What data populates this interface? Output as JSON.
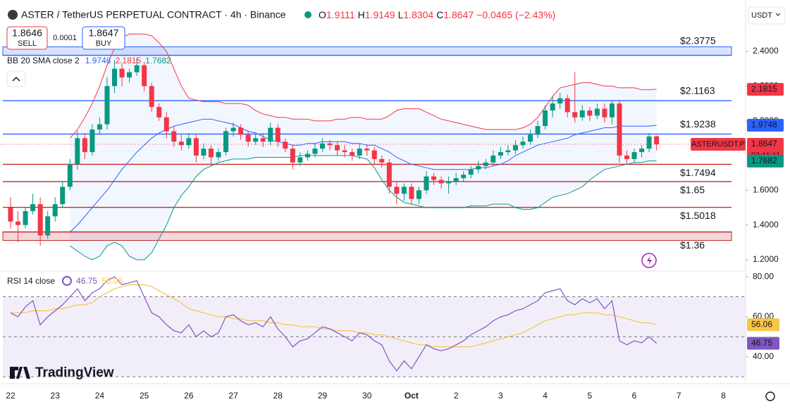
{
  "header": {
    "title": "ASTER / TetherUS PERPETUAL CONTRACT · 4h · Binance",
    "ohlc": [
      {
        "key": "O",
        "value": "1.9111"
      },
      {
        "key": "H",
        "value": "1.9149"
      },
      {
        "key": "L",
        "value": "1.8304"
      },
      {
        "key": "C",
        "value": "1.8647"
      }
    ],
    "change": "−0.0465 (−2.43%)",
    "currency": "USDT"
  },
  "trade": {
    "sell_price": "1.8646",
    "sell": "SELL",
    "spread": "0.0001",
    "buy_price": "1.8647",
    "buy": "BUY"
  },
  "indicators": {
    "bb": {
      "label": "BB 20 SMA close 2",
      "values": [
        "1.9748",
        "2.1815",
        "1.7682"
      ]
    },
    "rsi": {
      "label": "RSI 14 close",
      "values": [
        "46.75",
        "56.06"
      ]
    }
  },
  "brand": "TradingView",
  "chart_data": [
    {
      "type": "candlestick",
      "categories": [
        "22",
        null,
        null,
        null,
        null,
        null,
        "23",
        null,
        null,
        null,
        null,
        null,
        "24",
        null,
        null,
        null,
        null,
        null,
        "25",
        null,
        null,
        null,
        null,
        null,
        "26",
        null,
        null,
        null,
        null,
        null,
        "27",
        null,
        null,
        null,
        null,
        null,
        "28",
        null,
        null,
        null,
        null,
        null,
        "29",
        null,
        null,
        null,
        null,
        null,
        "30",
        null,
        null,
        null,
        null,
        null,
        "Oct",
        null,
        null,
        null,
        null,
        null,
        "2",
        null,
        null,
        null,
        null,
        null,
        "3",
        null,
        null,
        null,
        null,
        null,
        "4",
        null,
        null,
        null,
        null,
        null,
        "5",
        null,
        null,
        null,
        null,
        null,
        "6",
        null,
        null,
        null,
        null,
        null,
        "7",
        null,
        null,
        null,
        null,
        null,
        "8"
      ],
      "open": [
        1.5,
        1.42,
        1.4,
        1.48,
        1.52,
        1.34,
        1.45,
        1.52,
        1.62,
        1.75,
        1.9,
        1.82,
        1.95,
        1.98,
        2.2,
        2.3,
        2.25,
        2.28,
        2.32,
        2.2,
        2.08,
        2.02,
        1.94,
        1.88,
        1.86,
        1.9,
        1.8,
        1.84,
        1.79,
        1.82,
        1.94,
        1.96,
        1.92,
        1.88,
        1.9,
        1.88,
        1.96,
        1.88,
        1.84,
        1.76,
        1.79,
        1.81,
        1.84,
        1.87,
        1.86,
        1.83,
        1.82,
        1.8,
        1.84,
        1.83,
        1.78,
        1.76,
        1.62,
        1.58,
        1.62,
        1.55,
        1.6,
        1.68,
        1.66,
        1.64,
        1.65,
        1.67,
        1.69,
        1.72,
        1.74,
        1.76,
        1.8,
        1.82,
        1.83,
        1.86,
        1.88,
        1.92,
        1.97,
        2.06,
        2.1,
        2.13,
        2.05,
        2.02,
        2.06,
        2.03,
        2.07,
        2.02,
        2.1,
        1.8,
        1.78,
        1.82,
        1.84,
        1.9111,
        null,
        null,
        null,
        null,
        null,
        null,
        null,
        null,
        null
      ],
      "high": [
        1.56,
        1.48,
        1.5,
        1.58,
        1.56,
        1.48,
        1.56,
        1.65,
        1.78,
        1.94,
        1.93,
        1.98,
        2.02,
        2.25,
        2.35,
        2.33,
        2.3,
        2.36,
        2.34,
        2.22,
        2.1,
        2.05,
        1.97,
        1.92,
        1.93,
        1.92,
        1.87,
        1.86,
        1.84,
        1.96,
        1.99,
        1.98,
        1.94,
        1.93,
        1.93,
        1.99,
        1.98,
        1.9,
        1.86,
        1.82,
        1.83,
        1.87,
        1.9,
        1.89,
        1.88,
        1.86,
        1.84,
        1.87,
        1.86,
        1.85,
        1.8,
        1.78,
        1.65,
        1.64,
        1.64,
        1.62,
        1.71,
        1.7,
        1.68,
        1.68,
        1.7,
        1.71,
        1.74,
        1.77,
        1.78,
        1.83,
        1.85,
        1.86,
        1.89,
        1.91,
        1.95,
        2.0,
        2.09,
        2.14,
        2.16,
        2.15,
        2.28,
        2.09,
        2.08,
        2.1,
        2.1,
        2.12,
        2.12,
        1.83,
        1.84,
        1.86,
        1.93,
        1.9149,
        null,
        null,
        null,
        null,
        null,
        null,
        null,
        null,
        null
      ],
      "low": [
        1.38,
        1.3,
        1.38,
        1.46,
        1.28,
        1.32,
        1.42,
        1.5,
        1.6,
        1.72,
        1.78,
        1.8,
        1.92,
        1.95,
        2.16,
        2.2,
        2.22,
        2.26,
        2.17,
        2.05,
        2.0,
        1.9,
        1.85,
        1.83,
        1.84,
        1.76,
        1.78,
        1.74,
        1.77,
        1.8,
        1.91,
        1.89,
        1.85,
        1.86,
        1.85,
        1.86,
        1.85,
        1.82,
        1.72,
        1.74,
        1.77,
        1.79,
        1.82,
        1.83,
        1.8,
        1.79,
        1.77,
        1.78,
        1.8,
        1.75,
        1.73,
        1.58,
        1.52,
        1.54,
        1.52,
        1.52,
        1.58,
        1.63,
        1.61,
        1.58,
        1.63,
        1.65,
        1.67,
        1.7,
        1.72,
        1.74,
        1.78,
        1.8,
        1.81,
        1.84,
        1.86,
        1.9,
        1.95,
        2.02,
        2.07,
        2.02,
        1.99,
        2.0,
        2.0,
        2.01,
        1.99,
        1.98,
        1.76,
        1.75,
        1.76,
        1.79,
        1.82,
        1.8304,
        null,
        null,
        null,
        null,
        null,
        null,
        null,
        null,
        null
      ],
      "close": [
        1.42,
        1.4,
        1.48,
        1.52,
        1.34,
        1.45,
        1.52,
        1.62,
        1.75,
        1.9,
        1.82,
        1.95,
        1.98,
        2.2,
        2.3,
        2.25,
        2.28,
        2.32,
        2.2,
        2.08,
        2.02,
        1.94,
        1.88,
        1.86,
        1.9,
        1.8,
        1.84,
        1.79,
        1.82,
        1.94,
        1.96,
        1.92,
        1.88,
        1.9,
        1.88,
        1.96,
        1.88,
        1.84,
        1.76,
        1.79,
        1.81,
        1.84,
        1.87,
        1.86,
        1.83,
        1.82,
        1.8,
        1.84,
        1.83,
        1.78,
        1.76,
        1.62,
        1.58,
        1.62,
        1.55,
        1.6,
        1.68,
        1.66,
        1.64,
        1.65,
        1.67,
        1.69,
        1.72,
        1.74,
        1.76,
        1.8,
        1.82,
        1.83,
        1.86,
        1.88,
        1.92,
        1.97,
        2.06,
        2.1,
        2.13,
        2.05,
        2.02,
        2.06,
        2.03,
        2.07,
        2.02,
        2.1,
        1.8,
        1.78,
        1.82,
        1.84,
        1.91,
        1.8647,
        null,
        null,
        null,
        null,
        null,
        null,
        null,
        null,
        null
      ],
      "up_color": "#089981",
      "down_color": "#f23645",
      "series": [
        {
          "color": "#2962ff",
          "values": [
            null,
            null,
            null,
            null,
            null,
            null,
            null,
            null,
            1.36,
            1.4,
            1.45,
            1.5,
            1.55,
            1.6,
            1.66,
            1.72,
            1.77,
            1.82,
            1.86,
            1.9,
            1.93,
            1.95,
            1.97,
            1.98,
            1.99,
            2.0,
            2.01,
            2.01,
            2.0,
            1.99,
            1.98,
            1.96,
            1.94,
            1.93,
            1.91,
            1.89,
            1.88,
            1.87,
            1.86,
            1.86,
            1.87,
            1.87,
            1.88,
            1.88,
            1.88,
            1.88,
            1.87,
            1.87,
            1.86,
            1.86,
            1.84,
            1.82,
            1.79,
            1.77,
            1.75,
            1.74,
            1.73,
            1.72,
            1.72,
            1.72,
            1.72,
            1.72,
            1.72,
            1.73,
            1.73,
            1.74,
            1.75,
            1.77,
            1.8,
            1.82,
            1.84,
            1.86,
            1.87,
            1.88,
            1.89,
            1.9,
            1.92,
            1.93,
            1.94,
            1.95,
            1.96,
            1.96,
            1.97,
            1.97,
            1.97,
            1.97,
            1.97,
            1.9748,
            null,
            null,
            null,
            null,
            null,
            null,
            null,
            null,
            null
          ]
        },
        {
          "color": "#f23645",
          "values": [
            null,
            null,
            null,
            null,
            null,
            null,
            null,
            null,
            1.9,
            1.95,
            2.02,
            2.1,
            2.2,
            2.32,
            2.42,
            2.48,
            2.5,
            2.5,
            2.5,
            2.49,
            2.45,
            2.4,
            2.3,
            2.2,
            2.13,
            2.12,
            2.11,
            2.11,
            2.11,
            2.1,
            2.1,
            2.1,
            2.09,
            2.06,
            2.04,
            2.03,
            2.02,
            2.02,
            2.01,
            2.01,
            2.01,
            2.0,
            2.0,
            2.0,
            2.01,
            2.01,
            2.02,
            2.02,
            2.01,
            2.01,
            2.01,
            2.03,
            2.06,
            2.07,
            2.07,
            2.07,
            2.05,
            2.03,
            2.01,
            2.0,
            1.99,
            1.98,
            1.97,
            1.96,
            1.95,
            1.95,
            1.95,
            1.95,
            1.95,
            1.96,
            1.98,
            2.02,
            2.08,
            2.14,
            2.19,
            2.2,
            2.21,
            2.22,
            2.22,
            2.21,
            2.2,
            2.2,
            2.19,
            2.19,
            2.19,
            2.18,
            2.18,
            2.1815,
            null,
            null,
            null,
            null,
            null,
            null,
            null,
            null,
            null
          ]
        },
        {
          "color": "#089981",
          "values": [
            null,
            null,
            null,
            null,
            null,
            null,
            null,
            null,
            1.28,
            1.25,
            1.22,
            1.2,
            1.22,
            1.28,
            1.3,
            1.28,
            1.22,
            1.2,
            1.2,
            1.24,
            1.32,
            1.4,
            1.5,
            1.57,
            1.62,
            1.68,
            1.72,
            1.74,
            1.76,
            1.77,
            1.78,
            1.78,
            1.78,
            1.79,
            1.79,
            1.79,
            1.79,
            1.79,
            1.79,
            1.8,
            1.8,
            1.8,
            1.8,
            1.8,
            1.8,
            1.8,
            1.8,
            1.79,
            1.78,
            1.73,
            1.66,
            1.6,
            1.56,
            1.53,
            1.52,
            1.51,
            1.5,
            1.5,
            1.5,
            1.5,
            1.5,
            1.5,
            1.51,
            1.51,
            1.51,
            1.52,
            1.52,
            1.52,
            1.5,
            1.49,
            1.49,
            1.5,
            1.53,
            1.56,
            1.57,
            1.58,
            1.6,
            1.62,
            1.66,
            1.69,
            1.72,
            1.73,
            1.74,
            1.75,
            1.76,
            1.76,
            1.77,
            1.7682,
            null,
            null,
            null,
            null,
            null,
            null,
            null,
            null,
            null
          ]
        }
      ],
      "band_fill": "#2962ff",
      "ylim": [
        1.135,
        2.696
      ],
      "yticks": [
        {
          "value": 2.4,
          "label": "2.4000"
        },
        {
          "value": 2.2,
          "label": "2.2000"
        },
        {
          "value": 2.0,
          "label": "2.0000"
        },
        {
          "value": 1.6,
          "label": "1.6000"
        },
        {
          "value": 1.4,
          "label": "1.4000"
        },
        {
          "value": 1.2,
          "label": "1.2000"
        }
      ],
      "levels": [
        {
          "value": 2.3775,
          "label": "$2.3775",
          "color": "#2962ff",
          "side": "above",
          "zone": true
        },
        {
          "value": 2.1163,
          "label": "$2.1163",
          "color": "#2962ff",
          "side": "above",
          "zone": false
        },
        {
          "value": 1.9238,
          "label": "$1.9238",
          "color": "#2962ff",
          "side": "above",
          "zone": false
        },
        {
          "value": 1.7494,
          "label": "$1.7494",
          "color": "#c62828",
          "side": "below",
          "zone": false
        },
        {
          "value": 1.65,
          "label": "$1.65",
          "color": "#c62828",
          "side": "below",
          "zone": false
        },
        {
          "value": 1.5018,
          "label": "$1.5018",
          "color": "#c62828",
          "side": "below",
          "zone": false
        },
        {
          "value": 1.36,
          "label": "$1.36",
          "color": "#c62828",
          "side": "below",
          "zone": true
        }
      ],
      "price_tags": [
        {
          "value": 2.1815,
          "color": "#f23645"
        },
        {
          "value": 1.9748,
          "color": "#2962ff"
        },
        {
          "value": 1.8647,
          "color": "#f23645",
          "symbol": "ASTERUSDT.P",
          "countdown": "02:11:11"
        },
        {
          "value": 1.7682,
          "color": "#089981"
        }
      ]
    },
    {
      "type": "line",
      "series": [
        {
          "color": "#7e57c2",
          "values": [
            62,
            60,
            65,
            68,
            56,
            60,
            63,
            66,
            70,
            74,
            68,
            72,
            74,
            78,
            80,
            76,
            77,
            78,
            70,
            62,
            60,
            56,
            53,
            52,
            56,
            50,
            53,
            50,
            52,
            60,
            61,
            58,
            56,
            57,
            55,
            60,
            54,
            50,
            45,
            48,
            49,
            52,
            55,
            54,
            52,
            50,
            48,
            52,
            51,
            48,
            46,
            38,
            33,
            38,
            34,
            40,
            46,
            44,
            43,
            44,
            46,
            48,
            51,
            53,
            55,
            58,
            60,
            61,
            63,
            64,
            66,
            68,
            72,
            73,
            74,
            68,
            66,
            69,
            67,
            69,
            64,
            68,
            48,
            46,
            48,
            47,
            50,
            46.75
          ]
        },
        {
          "color": "#f7c548",
          "values": [
            62,
            62,
            62,
            63,
            63,
            63,
            64,
            64,
            65,
            66,
            66,
            67,
            70,
            72,
            74,
            75,
            76,
            76,
            76,
            75,
            73,
            71,
            69,
            67,
            64,
            63,
            62,
            61,
            60,
            60,
            59,
            59,
            58,
            58,
            58,
            57,
            57,
            56,
            56,
            55,
            55,
            55,
            54,
            54,
            53,
            53,
            53,
            52,
            52,
            51,
            51,
            50,
            49,
            48,
            47,
            46,
            46,
            45,
            45,
            45,
            45,
            45,
            45,
            46,
            47,
            48,
            49,
            50,
            51,
            52,
            54,
            56,
            58,
            59,
            60,
            61,
            61,
            62,
            62,
            62,
            61,
            61,
            60,
            59,
            58,
            57,
            57,
            56.06
          ]
        }
      ],
      "ylim": [
        28,
        81.8
      ],
      "yticks": [
        {
          "value": 80,
          "label": "80.00"
        },
        {
          "value": 60,
          "label": "60.00"
        },
        {
          "value": 40,
          "label": "40.00"
        }
      ],
      "levels": [
        70,
        50,
        30
      ],
      "band_color": "#7e57c2",
      "tags": [
        {
          "value": 56.06,
          "color": "#f7c548"
        },
        {
          "value": 46.75,
          "color": "#7e57c2"
        }
      ]
    }
  ]
}
